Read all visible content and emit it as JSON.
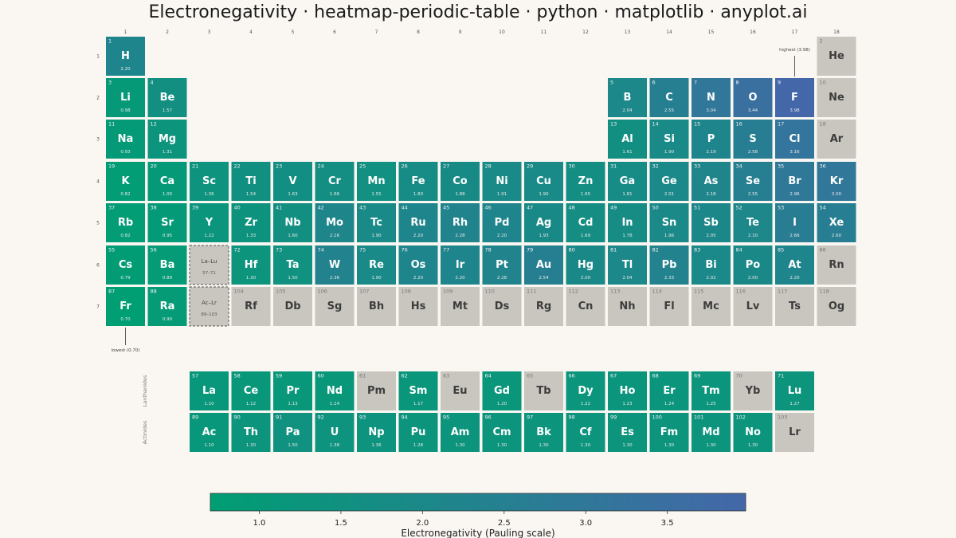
{
  "chart_data": {
    "type": "heatmap",
    "title": "Electronegativity · heatmap-periodic-table · python · matplotlib · anyplot.ai",
    "colorbar": {
      "label": "Electronegativity (Pauling scale)",
      "min": 0.7,
      "max": 3.98,
      "ticks": [
        "1.0",
        "1.5",
        "2.0",
        "2.5",
        "3.0",
        "3.5"
      ],
      "colors": [
        "#009e73",
        "#4467a9"
      ]
    },
    "missing_color": "#c8c6bf",
    "group_labels": [
      "1",
      "2",
      "3",
      "4",
      "5",
      "6",
      "7",
      "8",
      "9",
      "10",
      "11",
      "12",
      "13",
      "14",
      "15",
      "16",
      "17",
      "18"
    ],
    "period_labels": [
      "1",
      "2",
      "3",
      "4",
      "5",
      "6",
      "7"
    ],
    "series_labels": [
      "Lanthanides",
      "Actinides"
    ],
    "placeholders": [
      {
        "symbol": "La–Lu",
        "range": "57–71",
        "group": 3,
        "period": 6
      },
      {
        "symbol": "Ac–Lr",
        "range": "89–103",
        "group": 3,
        "period": 7
      }
    ],
    "annotations": [
      {
        "text": "highest (3.98)",
        "symbol": "F"
      },
      {
        "text": "lowest (0.70)",
        "symbol": "Fr"
      }
    ],
    "elements": [
      {
        "z": 1,
        "s": "H",
        "p": 1,
        "g": 1,
        "en": "2.20"
      },
      {
        "z": 2,
        "s": "He",
        "p": 1,
        "g": 18,
        "en": ""
      },
      {
        "z": 3,
        "s": "Li",
        "p": 2,
        "g": 1,
        "en": "0.98"
      },
      {
        "z": 4,
        "s": "Be",
        "p": 2,
        "g": 2,
        "en": "1.57"
      },
      {
        "z": 5,
        "s": "B",
        "p": 2,
        "g": 13,
        "en": "2.04"
      },
      {
        "z": 6,
        "s": "C",
        "p": 2,
        "g": 14,
        "en": "2.55"
      },
      {
        "z": 7,
        "s": "N",
        "p": 2,
        "g": 15,
        "en": "3.04"
      },
      {
        "z": 8,
        "s": "O",
        "p": 2,
        "g": 16,
        "en": "3.44"
      },
      {
        "z": 9,
        "s": "F",
        "p": 2,
        "g": 17,
        "en": "3.98"
      },
      {
        "z": 10,
        "s": "Ne",
        "p": 2,
        "g": 18,
        "en": ""
      },
      {
        "z": 11,
        "s": "Na",
        "p": 3,
        "g": 1,
        "en": "0.93"
      },
      {
        "z": 12,
        "s": "Mg",
        "p": 3,
        "g": 2,
        "en": "1.31"
      },
      {
        "z": 13,
        "s": "Al",
        "p": 3,
        "g": 13,
        "en": "1.61"
      },
      {
        "z": 14,
        "s": "Si",
        "p": 3,
        "g": 14,
        "en": "1.90"
      },
      {
        "z": 15,
        "s": "P",
        "p": 3,
        "g": 15,
        "en": "2.19"
      },
      {
        "z": 16,
        "s": "S",
        "p": 3,
        "g": 16,
        "en": "2.58"
      },
      {
        "z": 17,
        "s": "Cl",
        "p": 3,
        "g": 17,
        "en": "3.16"
      },
      {
        "z": 18,
        "s": "Ar",
        "p": 3,
        "g": 18,
        "en": ""
      },
      {
        "z": 19,
        "s": "K",
        "p": 4,
        "g": 1,
        "en": "0.82"
      },
      {
        "z": 20,
        "s": "Ca",
        "p": 4,
        "g": 2,
        "en": "1.00"
      },
      {
        "z": 21,
        "s": "Sc",
        "p": 4,
        "g": 3,
        "en": "1.36"
      },
      {
        "z": 22,
        "s": "Ti",
        "p": 4,
        "g": 4,
        "en": "1.54"
      },
      {
        "z": 23,
        "s": "V",
        "p": 4,
        "g": 5,
        "en": "1.63"
      },
      {
        "z": 24,
        "s": "Cr",
        "p": 4,
        "g": 6,
        "en": "1.66"
      },
      {
        "z": 25,
        "s": "Mn",
        "p": 4,
        "g": 7,
        "en": "1.55"
      },
      {
        "z": 26,
        "s": "Fe",
        "p": 4,
        "g": 8,
        "en": "1.83"
      },
      {
        "z": 27,
        "s": "Co",
        "p": 4,
        "g": 9,
        "en": "1.88"
      },
      {
        "z": 28,
        "s": "Ni",
        "p": 4,
        "g": 10,
        "en": "1.91"
      },
      {
        "z": 29,
        "s": "Cu",
        "p": 4,
        "g": 11,
        "en": "1.90"
      },
      {
        "z": 30,
        "s": "Zn",
        "p": 4,
        "g": 12,
        "en": "1.65"
      },
      {
        "z": 31,
        "s": "Ga",
        "p": 4,
        "g": 13,
        "en": "1.81"
      },
      {
        "z": 32,
        "s": "Ge",
        "p": 4,
        "g": 14,
        "en": "2.01"
      },
      {
        "z": 33,
        "s": "As",
        "p": 4,
        "g": 15,
        "en": "2.18"
      },
      {
        "z": 34,
        "s": "Se",
        "p": 4,
        "g": 16,
        "en": "2.55"
      },
      {
        "z": 35,
        "s": "Br",
        "p": 4,
        "g": 17,
        "en": "2.96"
      },
      {
        "z": 36,
        "s": "Kr",
        "p": 4,
        "g": 18,
        "en": "3.00"
      },
      {
        "z": 37,
        "s": "Rb",
        "p": 5,
        "g": 1,
        "en": "0.82"
      },
      {
        "z": 38,
        "s": "Sr",
        "p": 5,
        "g": 2,
        "en": "0.95"
      },
      {
        "z": 39,
        "s": "Y",
        "p": 5,
        "g": 3,
        "en": "1.22"
      },
      {
        "z": 40,
        "s": "Zr",
        "p": 5,
        "g": 4,
        "en": "1.33"
      },
      {
        "z": 41,
        "s": "Nb",
        "p": 5,
        "g": 5,
        "en": "1.60"
      },
      {
        "z": 42,
        "s": "Mo",
        "p": 5,
        "g": 6,
        "en": "2.16"
      },
      {
        "z": 43,
        "s": "Tc",
        "p": 5,
        "g": 7,
        "en": "1.90"
      },
      {
        "z": 44,
        "s": "Ru",
        "p": 5,
        "g": 8,
        "en": "2.20"
      },
      {
        "z": 45,
        "s": "Rh",
        "p": 5,
        "g": 9,
        "en": "2.28"
      },
      {
        "z": 46,
        "s": "Pd",
        "p": 5,
        "g": 10,
        "en": "2.20"
      },
      {
        "z": 47,
        "s": "Ag",
        "p": 5,
        "g": 11,
        "en": "1.93"
      },
      {
        "z": 48,
        "s": "Cd",
        "p": 5,
        "g": 12,
        "en": "1.69"
      },
      {
        "z": 49,
        "s": "In",
        "p": 5,
        "g": 13,
        "en": "1.78"
      },
      {
        "z": 50,
        "s": "Sn",
        "p": 5,
        "g": 14,
        "en": "1.96"
      },
      {
        "z": 51,
        "s": "Sb",
        "p": 5,
        "g": 15,
        "en": "2.05"
      },
      {
        "z": 52,
        "s": "Te",
        "p": 5,
        "g": 16,
        "en": "2.10"
      },
      {
        "z": 53,
        "s": "I",
        "p": 5,
        "g": 17,
        "en": "2.66"
      },
      {
        "z": 54,
        "s": "Xe",
        "p": 5,
        "g": 18,
        "en": "2.60"
      },
      {
        "z": 55,
        "s": "Cs",
        "p": 6,
        "g": 1,
        "en": "0.79"
      },
      {
        "z": 56,
        "s": "Ba",
        "p": 6,
        "g": 2,
        "en": "0.89"
      },
      {
        "z": 72,
        "s": "Hf",
        "p": 6,
        "g": 4,
        "en": "1.30"
      },
      {
        "z": 73,
        "s": "Ta",
        "p": 6,
        "g": 5,
        "en": "1.50"
      },
      {
        "z": 74,
        "s": "W",
        "p": 6,
        "g": 6,
        "en": "2.36"
      },
      {
        "z": 75,
        "s": "Re",
        "p": 6,
        "g": 7,
        "en": "1.90"
      },
      {
        "z": 76,
        "s": "Os",
        "p": 6,
        "g": 8,
        "en": "2.20"
      },
      {
        "z": 77,
        "s": "Ir",
        "p": 6,
        "g": 9,
        "en": "2.20"
      },
      {
        "z": 78,
        "s": "Pt",
        "p": 6,
        "g": 10,
        "en": "2.28"
      },
      {
        "z": 79,
        "s": "Au",
        "p": 6,
        "g": 11,
        "en": "2.54"
      },
      {
        "z": 80,
        "s": "Hg",
        "p": 6,
        "g": 12,
        "en": "2.00"
      },
      {
        "z": 81,
        "s": "Tl",
        "p": 6,
        "g": 13,
        "en": "2.04"
      },
      {
        "z": 82,
        "s": "Pb",
        "p": 6,
        "g": 14,
        "en": "2.33"
      },
      {
        "z": 83,
        "s": "Bi",
        "p": 6,
        "g": 15,
        "en": "2.02"
      },
      {
        "z": 84,
        "s": "Po",
        "p": 6,
        "g": 16,
        "en": "2.00"
      },
      {
        "z": 85,
        "s": "At",
        "p": 6,
        "g": 17,
        "en": "2.20"
      },
      {
        "z": 86,
        "s": "Rn",
        "p": 6,
        "g": 18,
        "en": ""
      },
      {
        "z": 87,
        "s": "Fr",
        "p": 7,
        "g": 1,
        "en": "0.70"
      },
      {
        "z": 88,
        "s": "Ra",
        "p": 7,
        "g": 2,
        "en": "0.90"
      },
      {
        "z": 104,
        "s": "Rf",
        "p": 7,
        "g": 4,
        "en": ""
      },
      {
        "z": 105,
        "s": "Db",
        "p": 7,
        "g": 5,
        "en": ""
      },
      {
        "z": 106,
        "s": "Sg",
        "p": 7,
        "g": 6,
        "en": ""
      },
      {
        "z": 107,
        "s": "Bh",
        "p": 7,
        "g": 7,
        "en": ""
      },
      {
        "z": 108,
        "s": "Hs",
        "p": 7,
        "g": 8,
        "en": ""
      },
      {
        "z": 109,
        "s": "Mt",
        "p": 7,
        "g": 9,
        "en": ""
      },
      {
        "z": 110,
        "s": "Ds",
        "p": 7,
        "g": 10,
        "en": ""
      },
      {
        "z": 111,
        "s": "Rg",
        "p": 7,
        "g": 11,
        "en": ""
      },
      {
        "z": 112,
        "s": "Cn",
        "p": 7,
        "g": 12,
        "en": ""
      },
      {
        "z": 113,
        "s": "Nh",
        "p": 7,
        "g": 13,
        "en": ""
      },
      {
        "z": 114,
        "s": "Fl",
        "p": 7,
        "g": 14,
        "en": ""
      },
      {
        "z": 115,
        "s": "Mc",
        "p": 7,
        "g": 15,
        "en": ""
      },
      {
        "z": 116,
        "s": "Lv",
        "p": 7,
        "g": 16,
        "en": ""
      },
      {
        "z": 117,
        "s": "Ts",
        "p": 7,
        "g": 17,
        "en": ""
      },
      {
        "z": 118,
        "s": "Og",
        "p": 7,
        "g": 18,
        "en": ""
      },
      {
        "z": 57,
        "s": "La",
        "p": "La",
        "g": 3,
        "en": "1.10"
      },
      {
        "z": 58,
        "s": "Ce",
        "p": "La",
        "g": 4,
        "en": "1.12"
      },
      {
        "z": 59,
        "s": "Pr",
        "p": "La",
        "g": 5,
        "en": "1.13"
      },
      {
        "z": 60,
        "s": "Nd",
        "p": "La",
        "g": 6,
        "en": "1.14"
      },
      {
        "z": 61,
        "s": "Pm",
        "p": "La",
        "g": 7,
        "en": ""
      },
      {
        "z": 62,
        "s": "Sm",
        "p": "La",
        "g": 8,
        "en": "1.17"
      },
      {
        "z": 63,
        "s": "Eu",
        "p": "La",
        "g": 9,
        "en": ""
      },
      {
        "z": 64,
        "s": "Gd",
        "p": "La",
        "g": 10,
        "en": "1.20"
      },
      {
        "z": 65,
        "s": "Tb",
        "p": "La",
        "g": 11,
        "en": ""
      },
      {
        "z": 66,
        "s": "Dy",
        "p": "La",
        "g": 12,
        "en": "1.22"
      },
      {
        "z": 67,
        "s": "Ho",
        "p": "La",
        "g": 13,
        "en": "1.23"
      },
      {
        "z": 68,
        "s": "Er",
        "p": "La",
        "g": 14,
        "en": "1.24"
      },
      {
        "z": 69,
        "s": "Tm",
        "p": "La",
        "g": 15,
        "en": "1.25"
      },
      {
        "z": 70,
        "s": "Yb",
        "p": "La",
        "g": 16,
        "en": ""
      },
      {
        "z": 71,
        "s": "Lu",
        "p": "La",
        "g": 17,
        "en": "1.27"
      },
      {
        "z": 89,
        "s": "Ac",
        "p": "Ac",
        "g": 3,
        "en": "1.10"
      },
      {
        "z": 90,
        "s": "Th",
        "p": "Ac",
        "g": 4,
        "en": "1.30"
      },
      {
        "z": 91,
        "s": "Pa",
        "p": "Ac",
        "g": 5,
        "en": "1.50"
      },
      {
        "z": 92,
        "s": "U",
        "p": "Ac",
        "g": 6,
        "en": "1.38"
      },
      {
        "z": 93,
        "s": "Np",
        "p": "Ac",
        "g": 7,
        "en": "1.36"
      },
      {
        "z": 94,
        "s": "Pu",
        "p": "Ac",
        "g": 8,
        "en": "1.28"
      },
      {
        "z": 95,
        "s": "Am",
        "p": "Ac",
        "g": 9,
        "en": "1.30"
      },
      {
        "z": 96,
        "s": "Cm",
        "p": "Ac",
        "g": 10,
        "en": "1.30"
      },
      {
        "z": 97,
        "s": "Bk",
        "p": "Ac",
        "g": 11,
        "en": "1.30"
      },
      {
        "z": 98,
        "s": "Cf",
        "p": "Ac",
        "g": 12,
        "en": "1.30"
      },
      {
        "z": 99,
        "s": "Es",
        "p": "Ac",
        "g": 13,
        "en": "1.30"
      },
      {
        "z": 100,
        "s": "Fm",
        "p": "Ac",
        "g": 14,
        "en": "1.30"
      },
      {
        "z": 101,
        "s": "Md",
        "p": "Ac",
        "g": 15,
        "en": "1.30"
      },
      {
        "z": 102,
        "s": "No",
        "p": "Ac",
        "g": 16,
        "en": "1.30"
      },
      {
        "z": 103,
        "s": "Lr",
        "p": "Ac",
        "g": 17,
        "en": ""
      }
    ]
  }
}
